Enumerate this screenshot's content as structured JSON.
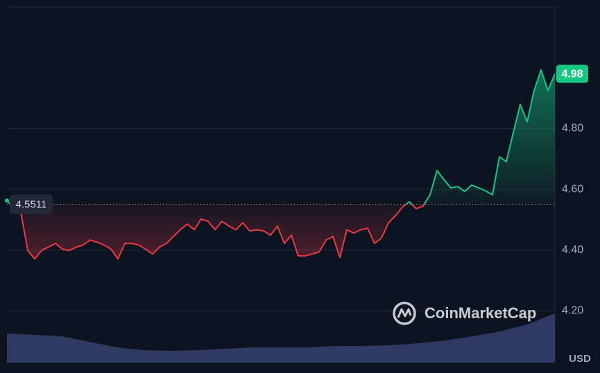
{
  "chart_data": {
    "type": "line",
    "values": [
      4.563,
      4.536,
      4.525,
      4.399,
      4.371,
      4.399,
      4.41,
      4.422,
      4.403,
      4.399,
      4.41,
      4.417,
      4.433,
      4.426,
      4.417,
      4.403,
      4.371,
      4.422,
      4.422,
      4.417,
      4.403,
      4.387,
      4.41,
      4.422,
      4.445,
      4.467,
      4.486,
      4.467,
      4.502,
      4.495,
      4.467,
      4.495,
      4.479,
      4.467,
      4.49,
      4.463,
      4.467,
      4.463,
      4.449,
      4.479,
      4.422,
      4.449,
      4.381,
      4.381,
      4.387,
      4.394,
      4.433,
      4.445,
      4.376,
      4.467,
      4.456,
      4.467,
      4.472,
      4.422,
      4.44,
      4.49,
      4.513,
      4.541,
      4.559,
      4.536,
      4.545,
      4.582,
      4.662,
      4.632,
      4.605,
      4.609,
      4.593,
      4.614,
      4.605,
      4.595,
      4.582,
      4.707,
      4.691,
      4.787,
      4.879,
      4.822,
      4.925,
      4.993,
      4.925,
      4.98
    ],
    "baseline": 4.5511,
    "up_color": "#16c784",
    "down_color": "#ea3943",
    "ylim": [
      4.03,
      5.2
    ],
    "yticks": [
      {
        "value": 4.2,
        "label": "4.20"
      },
      {
        "value": 4.4,
        "label": "4.40"
      },
      {
        "value": 4.6,
        "label": "4.60"
      },
      {
        "value": 4.8,
        "label": "4.80"
      }
    ],
    "grid": true,
    "volume": {
      "color": "#2f3961",
      "ylim": [
        0,
        100
      ],
      "values": [
        42,
        40,
        38,
        30,
        22,
        18,
        17,
        18,
        20,
        22,
        22,
        22,
        24,
        24,
        25,
        28,
        32,
        38,
        45,
        55,
        71
      ]
    },
    "currency": "USD",
    "watermark": "CoinMarketCap"
  }
}
